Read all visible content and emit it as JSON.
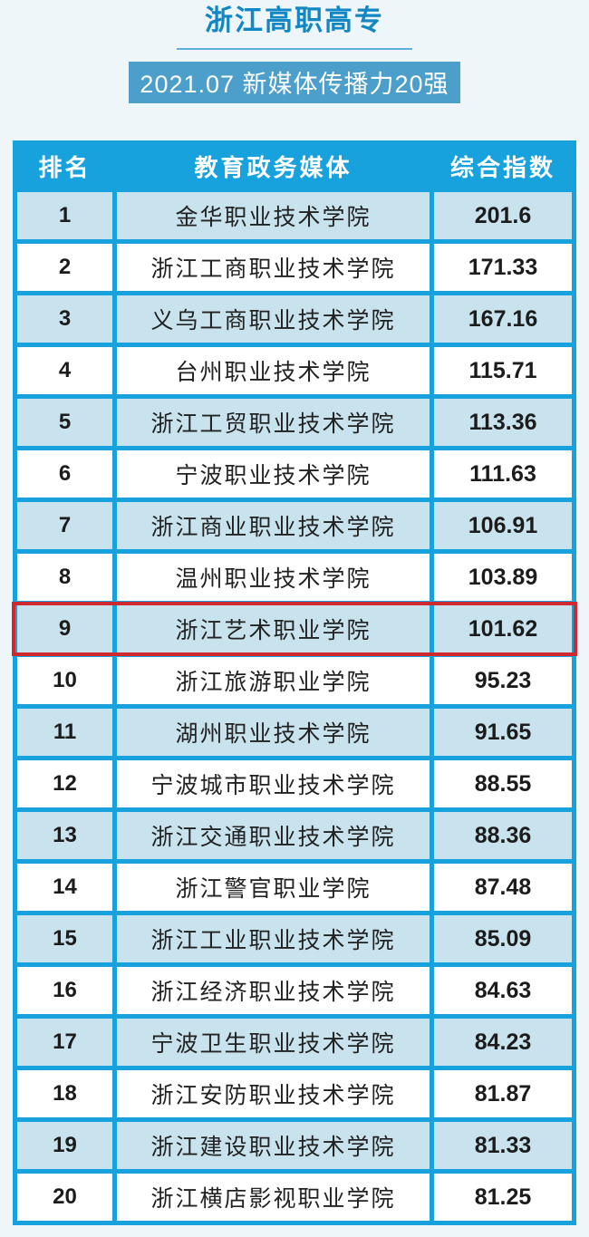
{
  "page": {
    "title": "浙江高职高专",
    "subtitle": "2021.07 新媒体传播力20强"
  },
  "colors": {
    "page_background": "#eff6fa",
    "table_blue": "#18a2dd",
    "tint_row_blue": "#c9e3ee",
    "plain_row_white": "#ffffff",
    "title_blue": "#1287c4",
    "subtitle_badge_blue": "#4b9fca",
    "highlight_red": "#d0282f"
  },
  "chart_data": {
    "type": "table",
    "title": "浙江高职高专",
    "subtitle": "2021.07 新媒体传播力20强",
    "columns": [
      "排名",
      "教育政务媒体",
      "综合指数"
    ],
    "highlighted_row_rank": 9,
    "rows": [
      [
        1,
        "金华职业技术学院",
        "201.6"
      ],
      [
        2,
        "浙江工商职业技术学院",
        "171.33"
      ],
      [
        3,
        "义乌工商职业技术学院",
        "167.16"
      ],
      [
        4,
        "台州职业技术学院",
        "115.71"
      ],
      [
        5,
        "浙江工贸职业技术学院",
        "113.36"
      ],
      [
        6,
        "宁波职业技术学院",
        "111.63"
      ],
      [
        7,
        "浙江商业职业技术学院",
        "106.91"
      ],
      [
        8,
        "温州职业技术学院",
        "103.89"
      ],
      [
        9,
        "浙江艺术职业学院",
        "101.62"
      ],
      [
        10,
        "浙江旅游职业学院",
        "95.23"
      ],
      [
        11,
        "湖州职业技术学院",
        "91.65"
      ],
      [
        12,
        "宁波城市职业技术学院",
        "88.55"
      ],
      [
        13,
        "浙江交通职业技术学院",
        "88.36"
      ],
      [
        14,
        "浙江警官职业学院",
        "87.48"
      ],
      [
        15,
        "浙江工业职业技术学院",
        "85.09"
      ],
      [
        16,
        "浙江经济职业技术学院",
        "84.63"
      ],
      [
        17,
        "宁波卫生职业技术学院",
        "84.23"
      ],
      [
        18,
        "浙江安防职业技术学院",
        "81.87"
      ],
      [
        19,
        "浙江建设职业技术学院",
        "81.33"
      ],
      [
        20,
        "浙江横店影视职业学院",
        "81.25"
      ]
    ]
  }
}
